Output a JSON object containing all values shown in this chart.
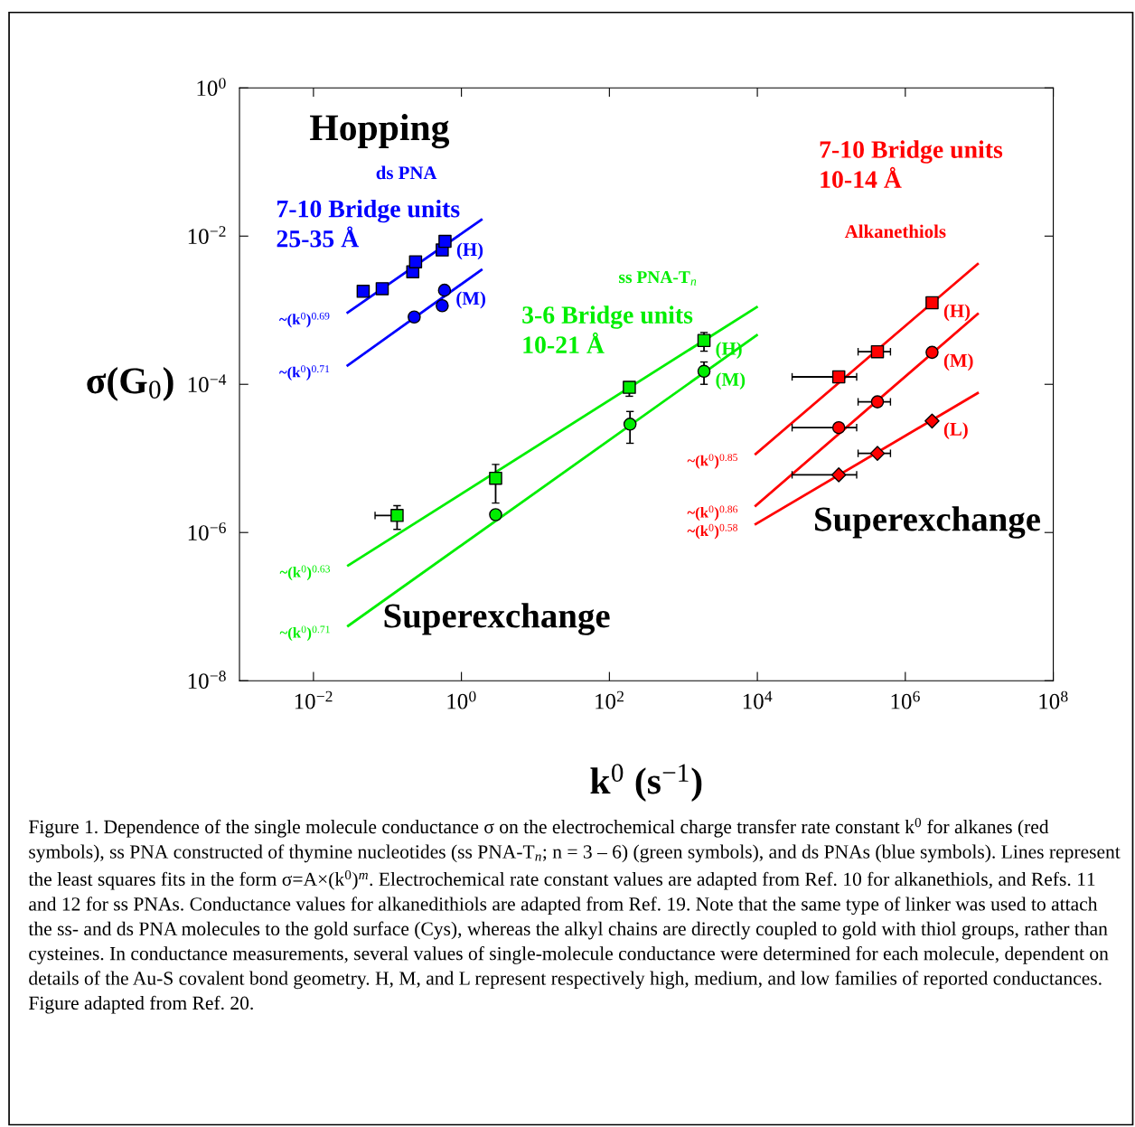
{
  "chart_data": {
    "type": "scatter",
    "log": "xy",
    "grid": false,
    "legend": false,
    "xlabel": "k$^{0}$ (s$^{−1}$)",
    "ylabel": "σ(G$_{0}$)",
    "xlim": [
      0.001,
      100000000
    ],
    "ylim": [
      1e-08,
      1
    ],
    "xticks": [
      {
        "value": 0.01,
        "label": "10$^{−2}$"
      },
      {
        "value": 1,
        "label": "10$^{0}$"
      },
      {
        "value": 100,
        "label": "10$^{2}$"
      },
      {
        "value": 10000,
        "label": "10$^{4}$"
      },
      {
        "value": 1000000,
        "label": "10$^{6}$"
      },
      {
        "value": 100000000,
        "label": "10$^{8}$"
      }
    ],
    "yticks": [
      {
        "value": 1e-08,
        "label": "10$^{−8}$"
      },
      {
        "value": 1e-06,
        "label": "10$^{−6}$"
      },
      {
        "value": 0.0001,
        "label": "10$^{−4}$"
      },
      {
        "value": 0.01,
        "label": "10$^{−2}$"
      },
      {
        "value": 1,
        "label": "10$^{0}$"
      }
    ],
    "series": [
      {
        "type": "line",
        "name": "~(k$^{0}$)$^{0.69}$",
        "color": "#0000ff",
        "x": [
          0.029,
          1.86
        ],
        "values": [
          0.00093,
          0.0166
        ]
      },
      {
        "type": "line",
        "name": "~(k$^{0}$)$^{0.71}$",
        "color": "#0000ff",
        "x": [
          0.029,
          1.86
        ],
        "values": [
          0.00018,
          0.0035
        ]
      },
      {
        "name": "(H)",
        "color": "#0000ff",
        "marker": "square",
        "x": [
          0.047,
          0.085,
          0.22,
          0.24,
          0.55,
          0.6
        ],
        "values": [
          0.0018,
          0.00195,
          0.0033,
          0.0045,
          0.0065,
          0.0085
        ]
      },
      {
        "name": "(M)",
        "color": "#0000ff",
        "marker": "circle",
        "x": [
          0.23,
          0.55,
          0.59
        ],
        "values": [
          0.00081,
          0.00115,
          0.00186
        ]
      },
      {
        "type": "line",
        "name": "~(k$^{0}$)$^{0.63}$",
        "color": "#00ee00",
        "x": [
          0.0295,
          9800
        ],
        "values": [
          3.6e-07,
          0.0011
        ]
      },
      {
        "type": "line",
        "name": "~(k$^{0}$)$^{0.71}$",
        "color": "#00ee00",
        "x": [
          0.0295,
          9800
        ],
        "values": [
          5.5e-08,
          0.00046
        ]
      },
      {
        "name": "(H)",
        "color": "#00ee00",
        "marker": "square",
        "x": [
          0.135,
          2.9,
          186,
          1900
        ],
        "values": [
          1.7e-06,
          5.4e-06,
          9.1e-05,
          0.00039
        ],
        "errors": [
          [
            1.1e-06,
            2.3e-06
          ],
          [
            2.5e-06,
            8.3e-06
          ],
          [
            6.9e-05,
            0.000105
          ],
          [
            0.00028,
            0.0005
          ]
        ],
        "xerrors": [
          [
            0.068,
            0.135
          ],
          null,
          null,
          null
        ]
      },
      {
        "name": "(M)",
        "color": "#00ee00",
        "marker": "circle",
        "x": [
          2.9,
          190,
          1900
        ],
        "values": [
          1.74e-06,
          2.9e-05,
          0.00015
        ],
        "errors": [
          null,
          [
            1.6e-05,
            4.3e-05
          ],
          [
            0.0001,
            0.0002
          ]
        ]
      },
      {
        "type": "line",
        "name": "~(k$^{0}$)$^{0.85}$",
        "color": "#ff0000",
        "x": [
          9500,
          9500000
        ],
        "values": [
          1.15e-05,
          0.0042
        ]
      },
      {
        "type": "line",
        "name": "~(k$^{0}$)$^{0.86}$",
        "color": "#ff0000",
        "x": [
          9500,
          9500000
        ],
        "values": [
          2.3e-06,
          0.00089
        ]
      },
      {
        "type": "line",
        "name": "~(k$^{0}$)$^{0.58}$",
        "color": "#ff0000",
        "x": [
          9500,
          9500000
        ],
        "values": [
          1.3e-06,
          7.6e-05
        ]
      },
      {
        "name": "(H)",
        "color": "#ff0000",
        "marker": "square",
        "x": [
          126000,
          420000,
          2300000
        ],
        "values": [
          0.000126,
          0.000275,
          0.00126
        ],
        "xerrors": [
          [
            29500,
            220000
          ],
          [
            230000,
            630000
          ],
          null
        ]
      },
      {
        "name": "(M)",
        "color": "#ff0000",
        "marker": "circle",
        "x": [
          126000,
          420000,
          2300000
        ],
        "values": [
          2.6e-05,
          5.8e-05,
          0.00027
        ],
        "xerrors": [
          [
            29500,
            220000
          ],
          [
            230000,
            630000
          ],
          null
        ]
      },
      {
        "name": "(L)",
        "color": "#ff0000",
        "marker": "diamond",
        "x": [
          126000,
          420000,
          2300000
        ],
        "values": [
          6e-06,
          1.17e-05,
          3.2e-05
        ],
        "xerrors": [
          [
            29500,
            220000
          ],
          [
            230000,
            630000
          ],
          null
        ]
      }
    ],
    "annotations": [
      "Hopping",
      "ds PNA",
      "7-10 Bridge units\n25-35 Å",
      "ss PNA-T$_{n}$",
      "3-6 Bridge units\n10-21 Å",
      "7-10 Bridge units\n10-14 Å",
      "Alkanethiols",
      "Superexchange",
      "Superexchange",
      "Figure 1. Dependence of the single molecule conductance σ on the electrochemical charge transfer rate constant k$^{0}$ for alkanes (red symbols), ss PNA constructed of thymine nucleotides (ss PNA-T$_{n}$; n = 3 – 6) (green symbols), and ds PNAs (blue symbols). Lines represent the least squares fits in the form σ=A×(k$^{0}$)$^{m}$. Electrochemical rate constant values are adapted from Ref. 10 for alkanethiols, and Refs. 11 and 12 for ss PNAs. Conductance values for alkanedithiols are adapted from Ref. 19. Note that the same type of linker was used to attach the ss- and ds PNA molecules to the gold surface (Cys), whereas the alkyl chains are directly coupled to gold with thiol groups, rather than cysteines. In conductance measurements, several values of single-molecule conductance were determined for each molecule, dependent on details of the Au-S covalent bond geometry. H, M, and L represent respectively high, medium, and low families of reported conductances. Figure adapted from Ref. 20."
    ]
  }
}
